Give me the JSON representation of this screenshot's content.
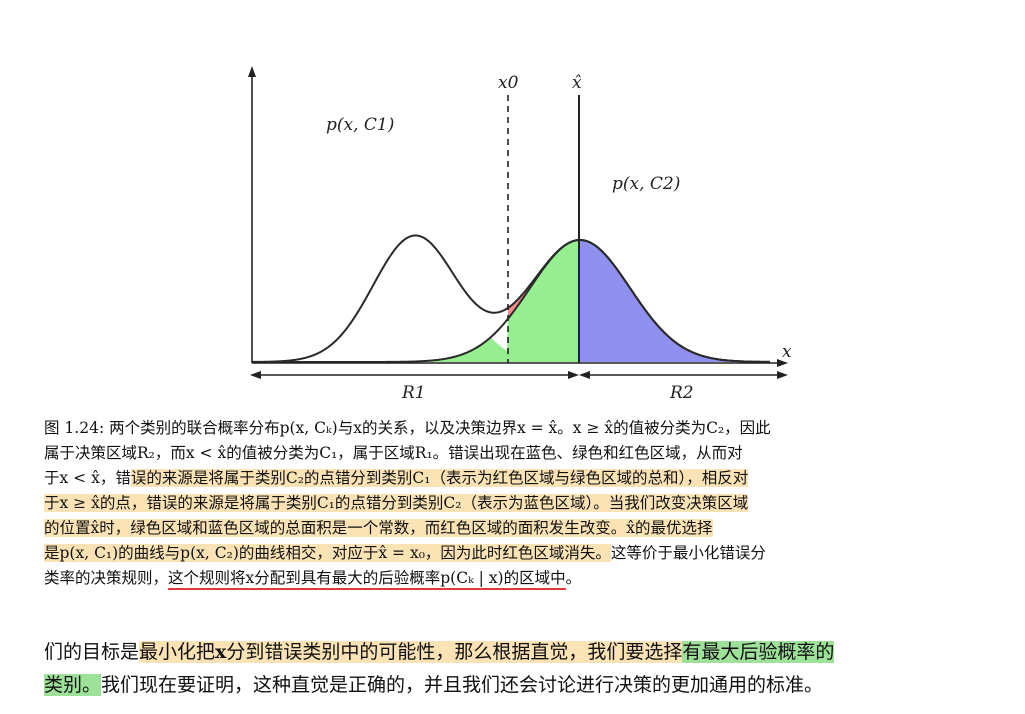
{
  "figure": {
    "curve_labels": {
      "c1": "p(x, C1)",
      "c2": "p(x, C2)"
    },
    "axis_labels": {
      "x": "x",
      "x0": "x0",
      "xhat": "x̂"
    },
    "region_labels": {
      "r1": "R1",
      "r2": "R2"
    },
    "region_colors": {
      "red": "#f08a8a",
      "green": "#96ee90",
      "blue": "#8f90ef"
    }
  },
  "caption": {
    "line1": "图 1.24: 两个类别的联合概率分布p(x, Cₖ)与x的关系，以及决策边界x = x̂。x ≥ x̂的值被分类为C₂，因此",
    "line2": "属于决策区域R₂，而x < x̂的值被分类为C₁，属于区域R₁。错误出现在蓝色、绿色和红色区域，从而对",
    "line3a": "于x < x̂，错",
    "line3b": "误的来源是将属于类别C₂的点错分到类别C₁（表示为红色区域与绿色区域的总和），相反对",
    "line4a": "于x ≥ x̂的点，错误的来源是将属于类别C₁的点错分到类别C₂（表示为蓝色区域）。当我们改变决策区域",
    "line5": "的位置x̂时，绿色区域和蓝色区域的总面积是一个常数，而红色区域的面积发生改变。x̂的最优选择",
    "line6a": "是p(x, C₁)的曲线与p(x, C₂)的曲线相交，对应于x̂ = x₀，因为此时红色区域消失。",
    "line6b": "这等价于最小化错误分",
    "line7a": "类率的决策规则，",
    "line7b": "这个规则将x分配到具有最大的后验概率p(Cₖ | x)的区域中",
    "line7c": "。"
  },
  "body_text": {
    "line1a": "们的目标是",
    "line1b": "最小化把",
    "line1c": "x",
    "line1d": "分到错误类别中的可能性，那么根据直觉，我们要选择",
    "line1e": "有最大后验概率的",
    "line2a": "类别。",
    "line2b": "我们现在要证明，这种直觉是正确的，并且我们还会讨论进行决策的更加通用的标准。"
  }
}
